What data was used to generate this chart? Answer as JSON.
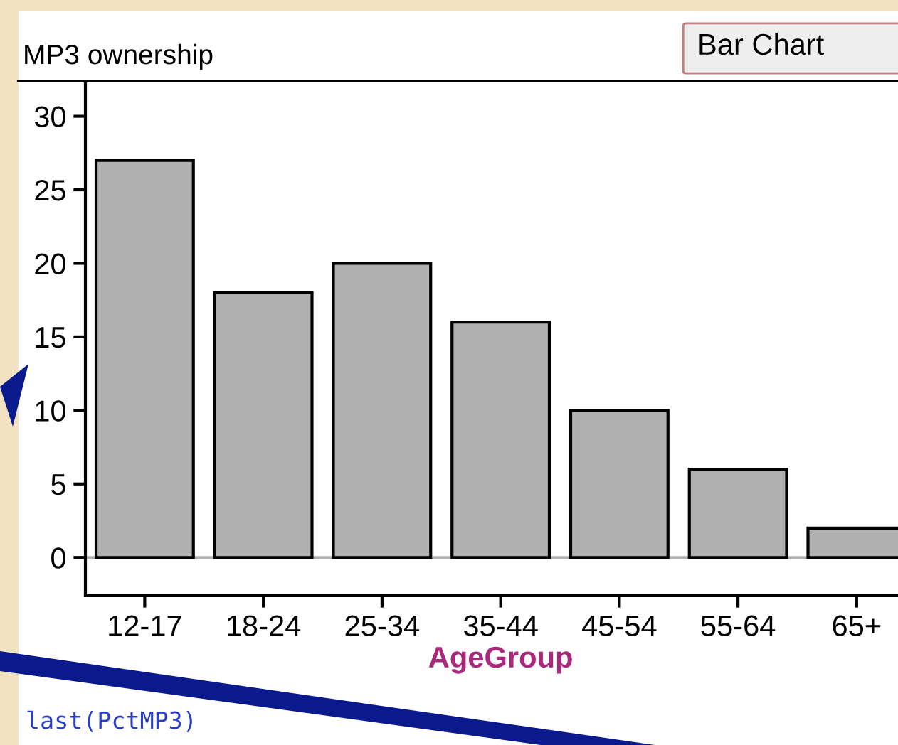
{
  "chart_data": {
    "type": "bar",
    "title": "MP3 ownership",
    "xlabel": "AgeGroup",
    "categories": [
      "12-17",
      "18-24",
      "25-34",
      "35-44",
      "45-54",
      "55-64",
      "65+"
    ],
    "values": [
      27,
      18,
      20,
      16,
      10,
      6,
      2
    ],
    "color": "#b0b0b0",
    "ylim": [
      -2.6,
      32.3
    ],
    "yticks": [
      0,
      5,
      10,
      15,
      20,
      25,
      30
    ],
    "ref_lines": [
      {
        "axis": "y",
        "value": 0,
        "color": "#b0b0b0"
      }
    ],
    "annotations": [
      "Bar Chart",
      "last(PctMP3)"
    ]
  }
}
